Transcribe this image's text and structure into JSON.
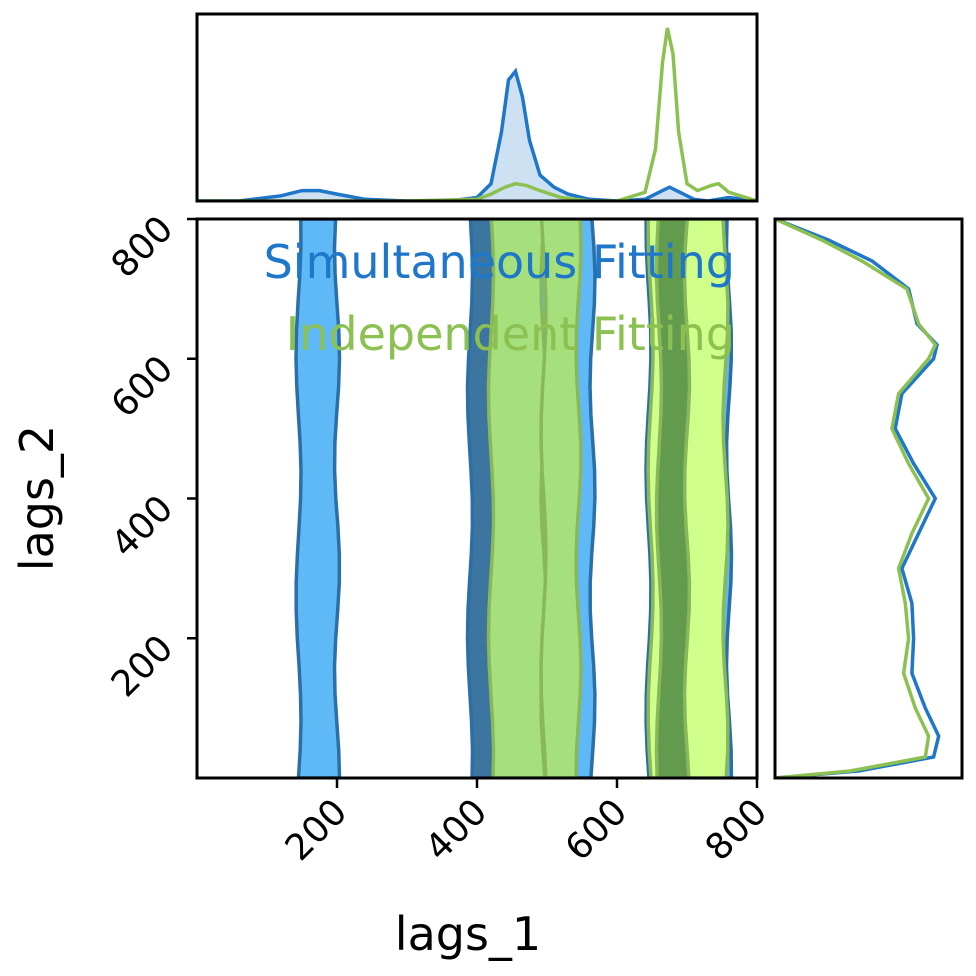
{
  "chart_data": {
    "type": "corner",
    "xlabel": "lags_1",
    "ylabel": "lags_2",
    "xlim": [
      0,
      800
    ],
    "ylim": [
      0,
      800
    ],
    "xticks": [
      "200",
      "400",
      "600",
      "800"
    ],
    "yticks": [
      "200",
      "400",
      "600",
      "800"
    ],
    "legend": {
      "placement": "top-right",
      "entries": [
        "Simultaneous Fitting",
        "Independent Fitting"
      ]
    },
    "series": [
      {
        "name": "Simultaneous Fitting",
        "color": "#1f77c9",
        "fill": "#5fb9f7",
        "marginal_x": {
          "x": [
            0,
            60,
            120,
            150,
            175,
            200,
            240,
            300,
            360,
            400,
            420,
            435,
            445,
            455,
            465,
            475,
            490,
            510,
            530,
            560,
            600,
            640,
            660,
            675,
            690,
            710,
            730,
            760,
            800
          ],
          "density": [
            0.0,
            0.0,
            0.03,
            0.06,
            0.06,
            0.04,
            0.01,
            0.0,
            0.0,
            0.02,
            0.1,
            0.4,
            0.7,
            0.75,
            0.6,
            0.35,
            0.15,
            0.08,
            0.04,
            0.01,
            0.0,
            0.01,
            0.05,
            0.08,
            0.05,
            0.01,
            0.0,
            0.02,
            0.0
          ]
        },
        "marginal_y": {
          "y": [
            0,
            10,
            30,
            60,
            100,
            150,
            200,
            250,
            300,
            350,
            400,
            450,
            500,
            550,
            600,
            620,
            650,
            700,
            740,
            770,
            800
          ],
          "density": [
            0.0,
            0.5,
            0.95,
            0.98,
            0.9,
            0.82,
            0.83,
            0.82,
            0.76,
            0.86,
            0.96,
            0.83,
            0.72,
            0.76,
            0.95,
            0.97,
            0.85,
            0.8,
            0.58,
            0.32,
            0.0
          ]
        },
        "bands": [
          {
            "x_range": [
              145,
              200
            ],
            "level": "outer"
          },
          {
            "x_range": [
              390,
              425
            ],
            "level": "inner"
          },
          {
            "x_range": [
              425,
              565
            ],
            "level": "outer"
          },
          {
            "x_range": [
              645,
              760
            ],
            "level": "outer"
          }
        ]
      },
      {
        "name": "Independent Fitting",
        "color": "#8cc152",
        "fill": "#a5e07c",
        "marginal_x": {
          "x": [
            0,
            100,
            200,
            300,
            400,
            420,
            440,
            455,
            470,
            490,
            520,
            560,
            600,
            640,
            655,
            665,
            672,
            680,
            688,
            700,
            715,
            735,
            745,
            760,
            800
          ],
          "density": [
            0.0,
            0.0,
            0.0,
            0.0,
            0.01,
            0.04,
            0.08,
            0.1,
            0.09,
            0.06,
            0.02,
            0.0,
            0.0,
            0.05,
            0.3,
            0.8,
            1.0,
            0.85,
            0.4,
            0.1,
            0.06,
            0.09,
            0.1,
            0.05,
            0.0
          ]
        },
        "marginal_y": {
          "y": [
            0,
            10,
            30,
            60,
            100,
            150,
            200,
            250,
            300,
            350,
            400,
            450,
            500,
            550,
            600,
            620,
            650,
            700,
            740,
            770,
            800
          ],
          "density": [
            0.0,
            0.45,
            0.9,
            0.92,
            0.84,
            0.77,
            0.8,
            0.78,
            0.74,
            0.82,
            0.92,
            0.8,
            0.7,
            0.74,
            0.92,
            0.96,
            0.86,
            0.79,
            0.52,
            0.28,
            0.0
          ]
        },
        "bands": [
          {
            "x_range": [
              420,
              495
            ],
            "level": "outer"
          },
          {
            "x_range": [
              495,
              545
            ],
            "level": "outer"
          },
          {
            "x_range": [
              648,
              755
            ],
            "level": "outer"
          },
          {
            "x_range": [
              660,
              700
            ],
            "level": "inner"
          }
        ]
      }
    ]
  }
}
